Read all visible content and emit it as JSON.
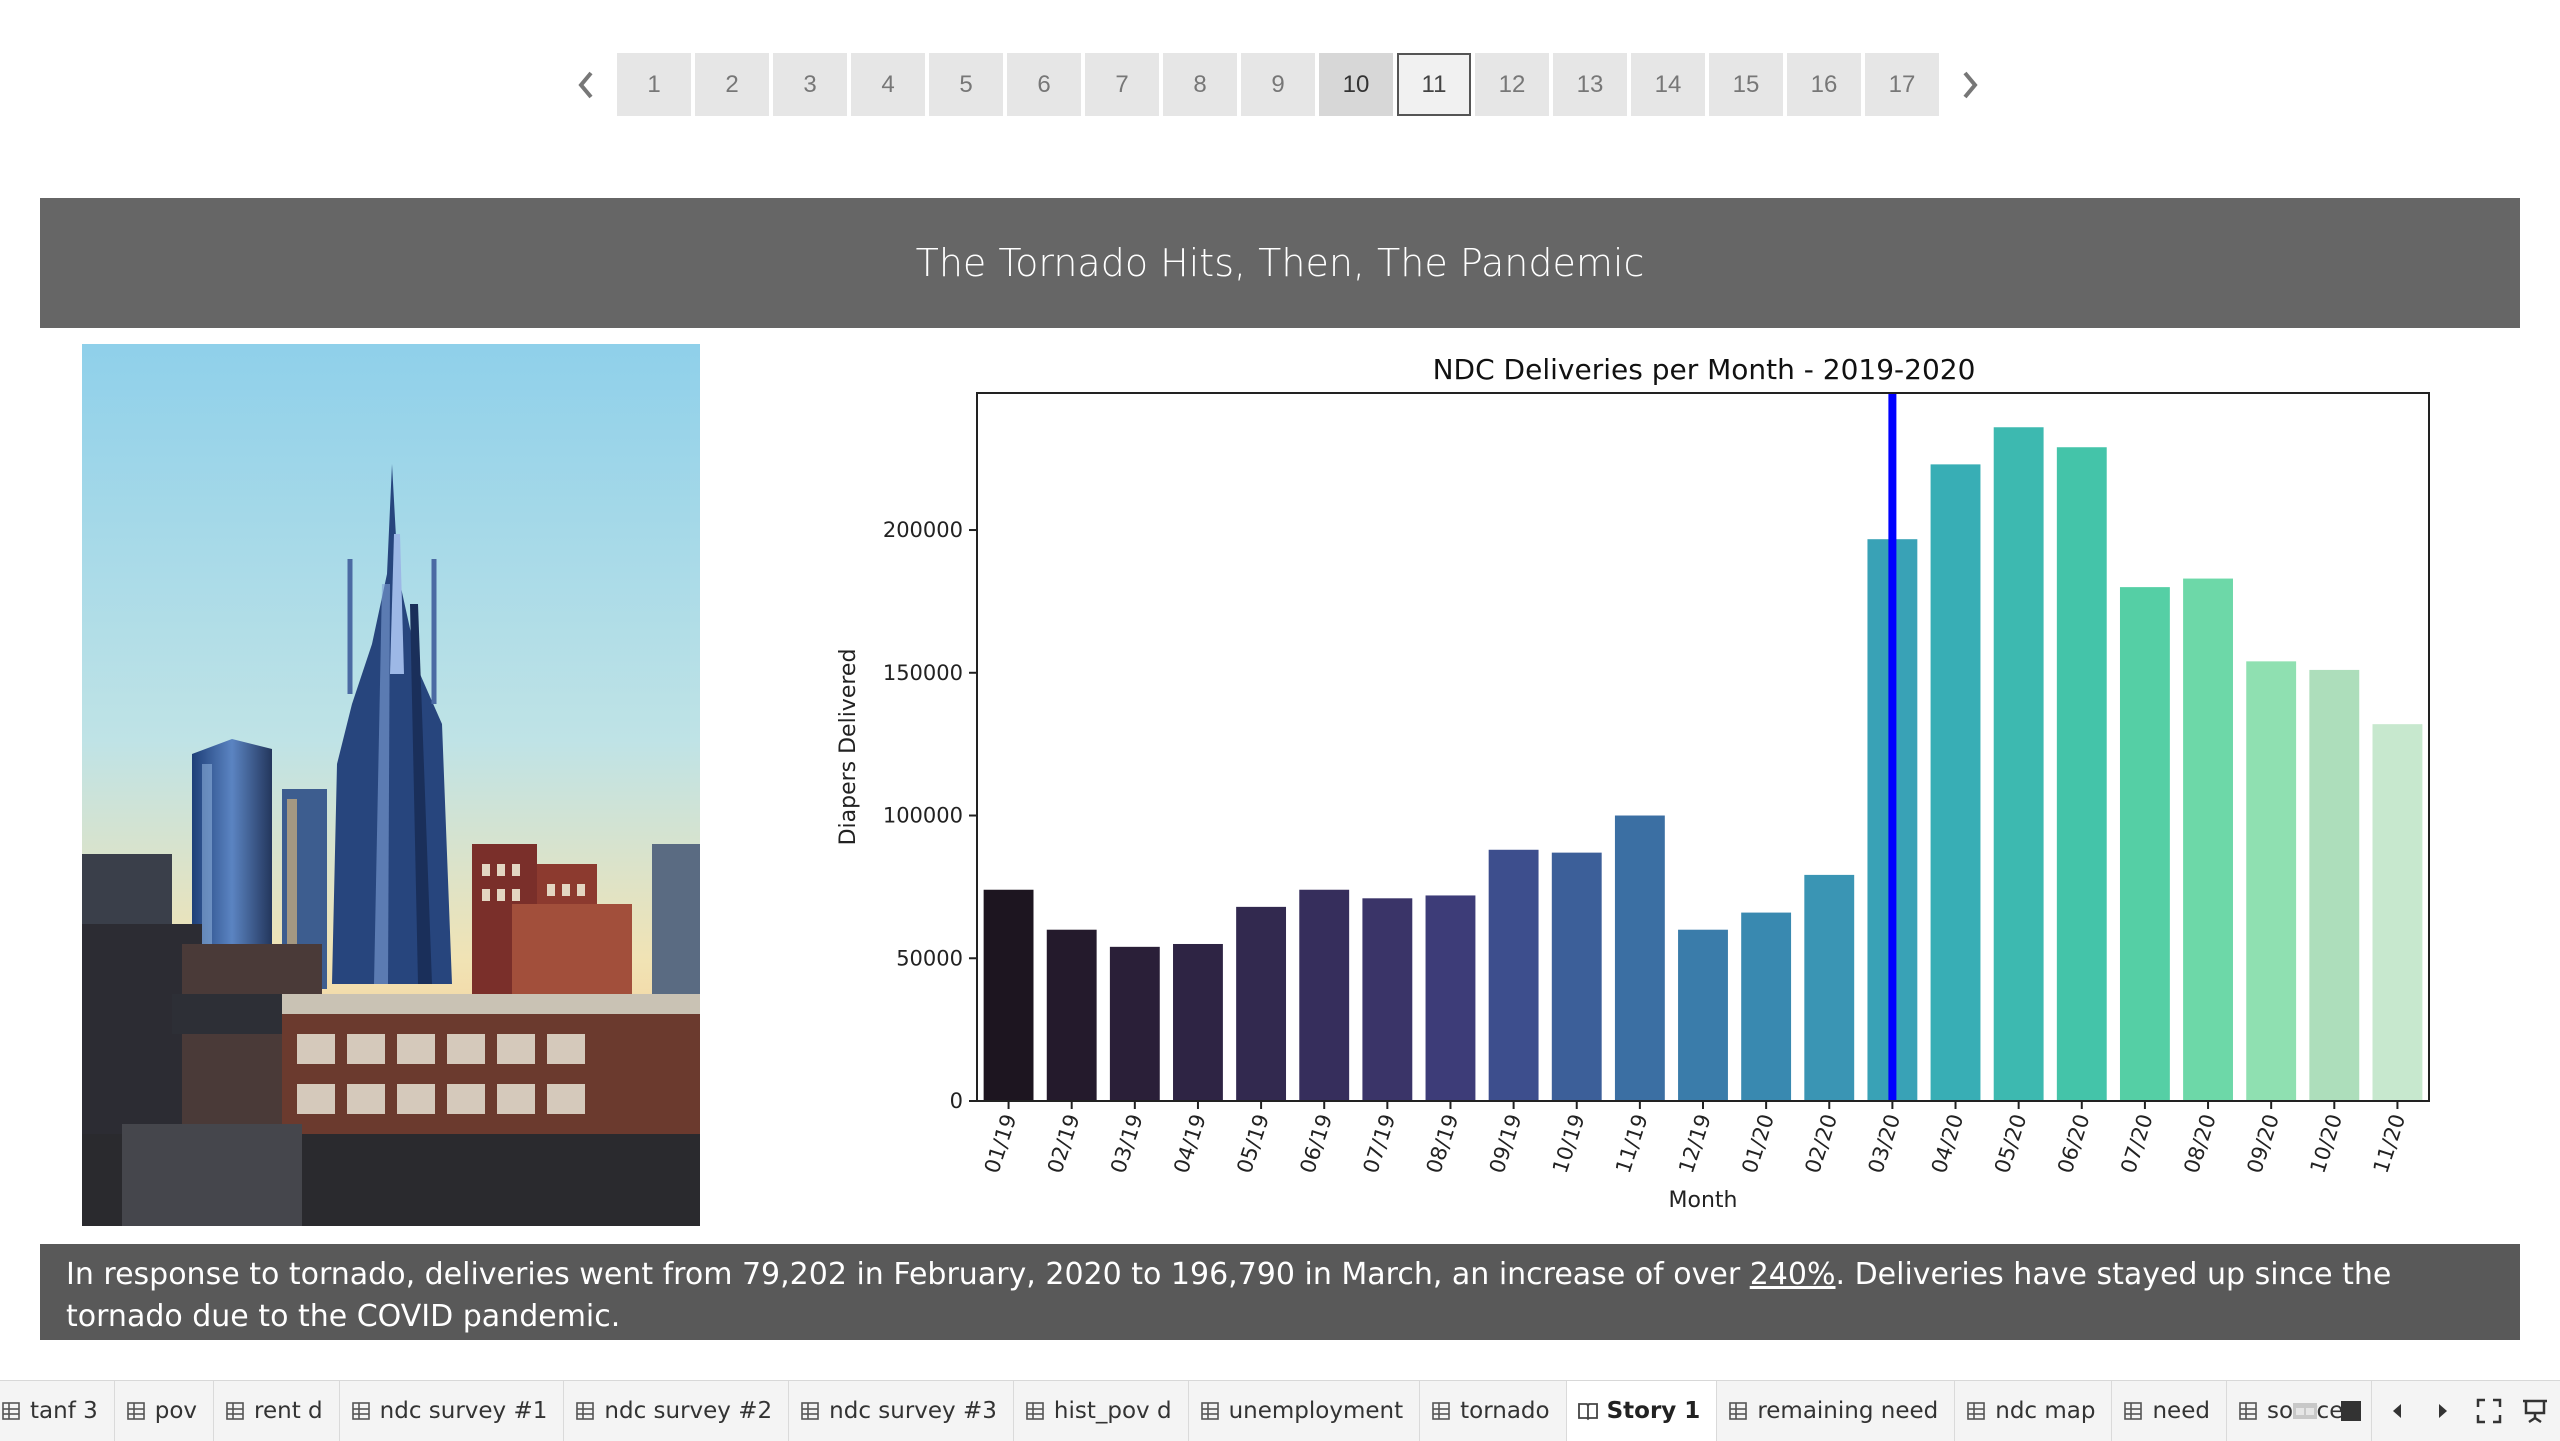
{
  "story_nav": {
    "pages": [
      "1",
      "2",
      "3",
      "4",
      "5",
      "6",
      "7",
      "8",
      "9",
      "10",
      "11",
      "12",
      "13",
      "14",
      "15",
      "16",
      "17"
    ],
    "selected_page": "10",
    "current_page": "11"
  },
  "caption": {
    "title": "The Tornado Hits, Then, The Pandemic"
  },
  "description": {
    "part1": "In response to tornado, deliveries went from 79,202 in February, 2020 to 196,790 in March, an increase of over ",
    "link": "240%",
    "part2": ". Deliveries have stayed up since the tornado due to the COVID pandemic."
  },
  "chart_data": {
    "type": "bar",
    "title": "NDC Deliveries per Month - 2019-2020",
    "xlabel": "Month",
    "ylabel": "Diapers Delivered",
    "categories": [
      "01/19",
      "02/19",
      "03/19",
      "04/19",
      "05/19",
      "06/19",
      "07/19",
      "08/19",
      "09/19",
      "10/19",
      "11/19",
      "12/19",
      "01/20",
      "02/20",
      "03/20",
      "04/20",
      "05/20",
      "06/20",
      "07/20",
      "08/20",
      "09/20",
      "10/20",
      "11/20"
    ],
    "values": [
      74000,
      60000,
      54000,
      55000,
      68000,
      74000,
      71000,
      72000,
      88000,
      87000,
      100000,
      60000,
      66000,
      79202,
      196790,
      223000,
      236000,
      229000,
      180000,
      183000,
      154000,
      151000,
      132000
    ],
    "colors": [
      "#1d1520",
      "#241a2c",
      "#2a1f38",
      "#2e2444",
      "#32294f",
      "#362e5c",
      "#3a3468",
      "#3d3c78",
      "#3d4e8d",
      "#3c5f99",
      "#3b6fa3",
      "#3a7caa",
      "#3989b0",
      "#3a95b4",
      "#39a2b6",
      "#38aeb5",
      "#3db9b0",
      "#44c4a9",
      "#55cfa5",
      "#6dd8a8",
      "#8fe0b1",
      "#addebb",
      "#c7e8ce"
    ],
    "yticks": [
      "0",
      "50000",
      "100000",
      "150000",
      "200000"
    ],
    "ylim": [
      0,
      248000
    ],
    "marker_line": {
      "category": "03/20",
      "color": "#0000ff"
    },
    "grid": false,
    "legend": "none"
  },
  "tabs": [
    {
      "label": "tanf 3",
      "icon": "sheet-icon"
    },
    {
      "label": "pov",
      "icon": "sheet-icon"
    },
    {
      "label": "rent d",
      "icon": "sheet-icon"
    },
    {
      "label": "ndc survey #1",
      "icon": "sheet-icon"
    },
    {
      "label": "ndc survey #2",
      "icon": "sheet-icon"
    },
    {
      "label": "ndc survey #3",
      "icon": "sheet-icon"
    },
    {
      "label": "hist_pov d",
      "icon": "sheet-icon"
    },
    {
      "label": "unemployment",
      "icon": "sheet-icon"
    },
    {
      "label": "tornado",
      "icon": "sheet-icon"
    },
    {
      "label": "Story 1",
      "icon": "story-icon",
      "active": true
    },
    {
      "label": "remaining need",
      "icon": "sheet-icon"
    },
    {
      "label": "ndc map",
      "icon": "sheet-icon"
    },
    {
      "label": "need",
      "icon": "sheet-icon"
    },
    {
      "label": "sources",
      "icon": "sheet-icon"
    }
  ],
  "toolbar_icons": [
    "show-filmstrip-icon",
    "show-tabs-icon",
    "scroll-left-icon",
    "scroll-right-icon",
    "fullscreen-icon",
    "presentation-mode-icon"
  ],
  "photo": {
    "icon": "nashville-skyline-photo"
  }
}
